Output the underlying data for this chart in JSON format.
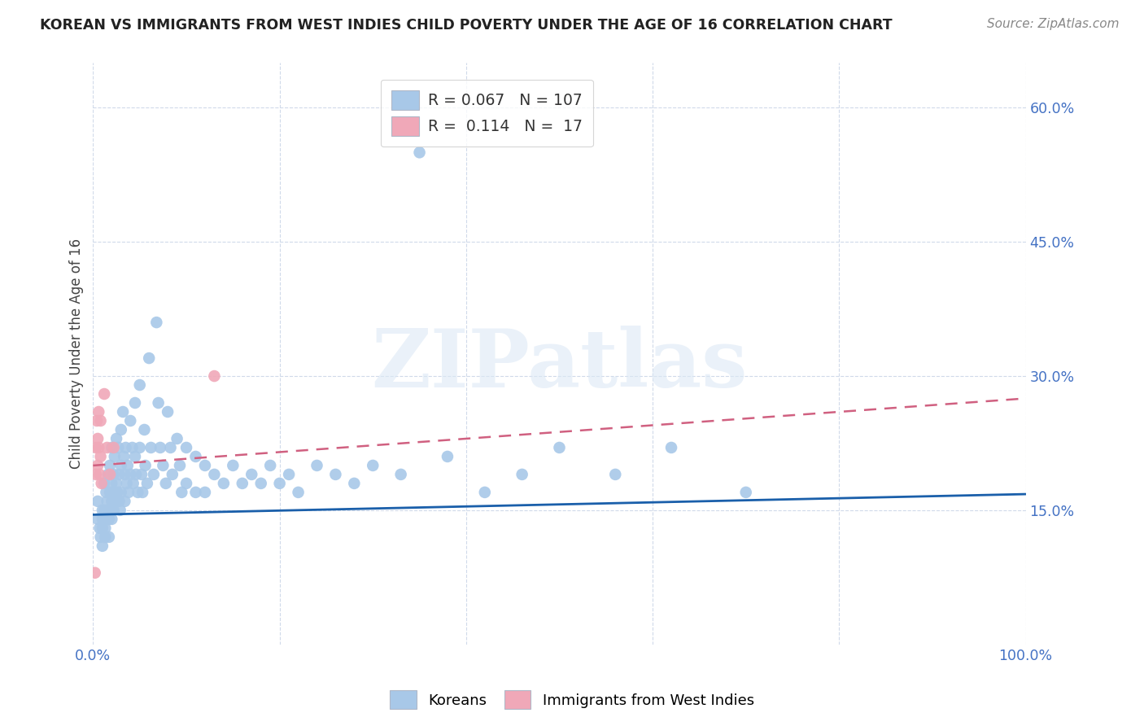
{
  "title": "KOREAN VS IMMIGRANTS FROM WEST INDIES CHILD POVERTY UNDER THE AGE OF 16 CORRELATION CHART",
  "source": "Source: ZipAtlas.com",
  "ylabel": "Child Poverty Under the Age of 16",
  "xlim": [
    0,
    1.0
  ],
  "ylim": [
    0,
    0.65
  ],
  "yticks": [
    0.15,
    0.3,
    0.45,
    0.6
  ],
  "ytick_labels": [
    "15.0%",
    "30.0%",
    "45.0%",
    "60.0%"
  ],
  "korean_R": 0.067,
  "korean_N": 107,
  "westindies_R": 0.114,
  "westindies_N": 17,
  "korean_color": "#a8c8e8",
  "westindies_color": "#f0a8b8",
  "korean_line_color": "#1a5faa",
  "westindies_line_color": "#d06080",
  "background_color": "#ffffff",
  "watermark_text": "ZIPatlas",
  "korean_x": [
    0.005,
    0.005,
    0.007,
    0.008,
    0.01,
    0.01,
    0.01,
    0.01,
    0.012,
    0.012,
    0.013,
    0.013,
    0.014,
    0.015,
    0.015,
    0.016,
    0.016,
    0.017,
    0.017,
    0.018,
    0.018,
    0.019,
    0.02,
    0.02,
    0.02,
    0.02,
    0.022,
    0.022,
    0.023,
    0.023,
    0.024,
    0.025,
    0.025,
    0.026,
    0.027,
    0.028,
    0.028,
    0.029,
    0.03,
    0.03,
    0.03,
    0.032,
    0.033,
    0.034,
    0.034,
    0.035,
    0.036,
    0.037,
    0.038,
    0.04,
    0.04,
    0.042,
    0.043,
    0.045,
    0.045,
    0.046,
    0.048,
    0.05,
    0.05,
    0.052,
    0.053,
    0.055,
    0.056,
    0.058,
    0.06,
    0.062,
    0.065,
    0.068,
    0.07,
    0.072,
    0.075,
    0.078,
    0.08,
    0.083,
    0.085,
    0.09,
    0.093,
    0.095,
    0.1,
    0.1,
    0.11,
    0.11,
    0.12,
    0.12,
    0.13,
    0.14,
    0.15,
    0.16,
    0.17,
    0.18,
    0.19,
    0.2,
    0.21,
    0.22,
    0.24,
    0.26,
    0.28,
    0.3,
    0.33,
    0.35,
    0.38,
    0.42,
    0.46,
    0.5,
    0.56,
    0.62,
    0.7
  ],
  "korean_y": [
    0.16,
    0.14,
    0.13,
    0.12,
    0.15,
    0.14,
    0.13,
    0.11,
    0.18,
    0.15,
    0.13,
    0.12,
    0.17,
    0.16,
    0.14,
    0.19,
    0.15,
    0.14,
    0.12,
    0.2,
    0.17,
    0.15,
    0.22,
    0.18,
    0.16,
    0.14,
    0.19,
    0.15,
    0.21,
    0.17,
    0.16,
    0.23,
    0.18,
    0.17,
    0.22,
    0.19,
    0.16,
    0.15,
    0.24,
    0.2,
    0.17,
    0.26,
    0.21,
    0.19,
    0.16,
    0.22,
    0.18,
    0.2,
    0.17,
    0.25,
    0.19,
    0.22,
    0.18,
    0.27,
    0.21,
    0.19,
    0.17,
    0.29,
    0.22,
    0.19,
    0.17,
    0.24,
    0.2,
    0.18,
    0.32,
    0.22,
    0.19,
    0.36,
    0.27,
    0.22,
    0.2,
    0.18,
    0.26,
    0.22,
    0.19,
    0.23,
    0.2,
    0.17,
    0.22,
    0.18,
    0.21,
    0.17,
    0.2,
    0.17,
    0.19,
    0.18,
    0.2,
    0.18,
    0.19,
    0.18,
    0.2,
    0.18,
    0.19,
    0.17,
    0.2,
    0.19,
    0.18,
    0.2,
    0.19,
    0.55,
    0.21,
    0.17,
    0.19,
    0.22,
    0.19,
    0.22,
    0.17
  ],
  "westindies_x": [
    0.002,
    0.003,
    0.003,
    0.004,
    0.005,
    0.005,
    0.006,
    0.006,
    0.007,
    0.008,
    0.008,
    0.009,
    0.012,
    0.015,
    0.018,
    0.022,
    0.13
  ],
  "westindies_y": [
    0.08,
    0.22,
    0.19,
    0.25,
    0.23,
    0.2,
    0.26,
    0.22,
    0.19,
    0.25,
    0.21,
    0.18,
    0.28,
    0.22,
    0.19,
    0.22,
    0.3
  ],
  "korean_trend": [
    0.145,
    0.168
  ],
  "westindies_trend": [
    0.2,
    0.275
  ],
  "westindies_trend_xrange": [
    0.0,
    1.0
  ]
}
